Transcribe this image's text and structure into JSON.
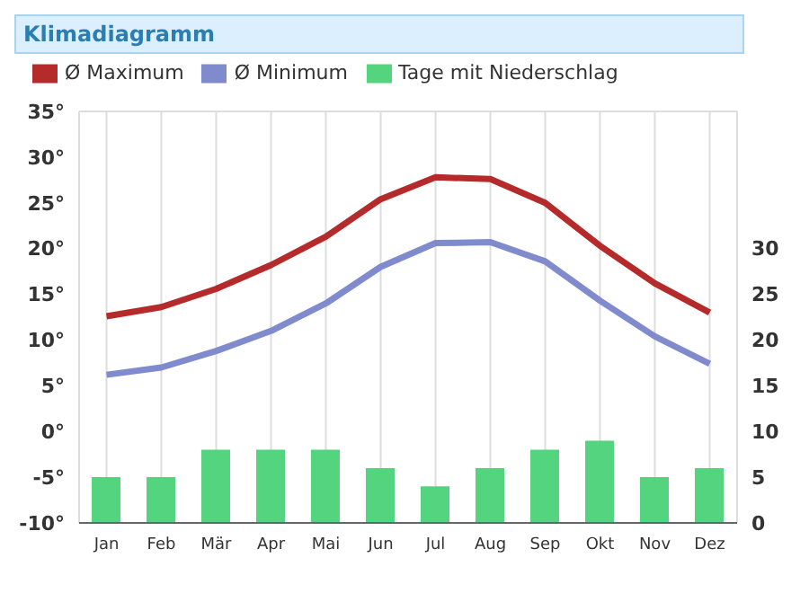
{
  "chart_data": {
    "type": "line",
    "title": "Klimadiagramm",
    "categories": [
      "Jan",
      "Feb",
      "Mär",
      "Apr",
      "Mai",
      "Jun",
      "Jul",
      "Aug",
      "Sep",
      "Okt",
      "Nov",
      "Dez"
    ],
    "series": [
      {
        "name": "Ø Maximum",
        "color": "#b52a2a",
        "values": [
          12.6,
          13.6,
          15.6,
          18.2,
          21.3,
          25.4,
          27.8,
          27.6,
          25,
          20.3,
          16.2,
          13
        ]
      },
      {
        "name": "Ø Minimum",
        "color": "#7f8bcc",
        "values": [
          6.2,
          7,
          8.8,
          11,
          14,
          18,
          20.6,
          20.7,
          18.6,
          14.3,
          10.4,
          7.4
        ]
      },
      {
        "name": "Tage mit Niederschlag",
        "type": "bar",
        "axis": "y2",
        "color": "#55d47f",
        "values": [
          5,
          5,
          8,
          8,
          8,
          6,
          4,
          6,
          8,
          9,
          5,
          6
        ]
      }
    ],
    "ylim": [
      -10,
      35
    ],
    "yticks": [
      {
        "value": -10,
        "label": "-10°"
      },
      {
        "value": -5,
        "label": "-5°"
      },
      {
        "value": 0,
        "label": "0°"
      },
      {
        "value": 5,
        "label": "5°"
      },
      {
        "value": 10,
        "label": "10°"
      },
      {
        "value": 15,
        "label": "15°"
      },
      {
        "value": 20,
        "label": "20°"
      },
      {
        "value": 25,
        "label": "25°"
      },
      {
        "value": 30,
        "label": "30°"
      },
      {
        "value": 35,
        "label": "35°"
      }
    ],
    "y2lim": [
      0,
      45
    ],
    "y2ticks": [
      0,
      5,
      10,
      15,
      20,
      25,
      30
    ],
    "grid": true,
    "legend": "top",
    "marker": "none",
    "line_style": "solid"
  }
}
